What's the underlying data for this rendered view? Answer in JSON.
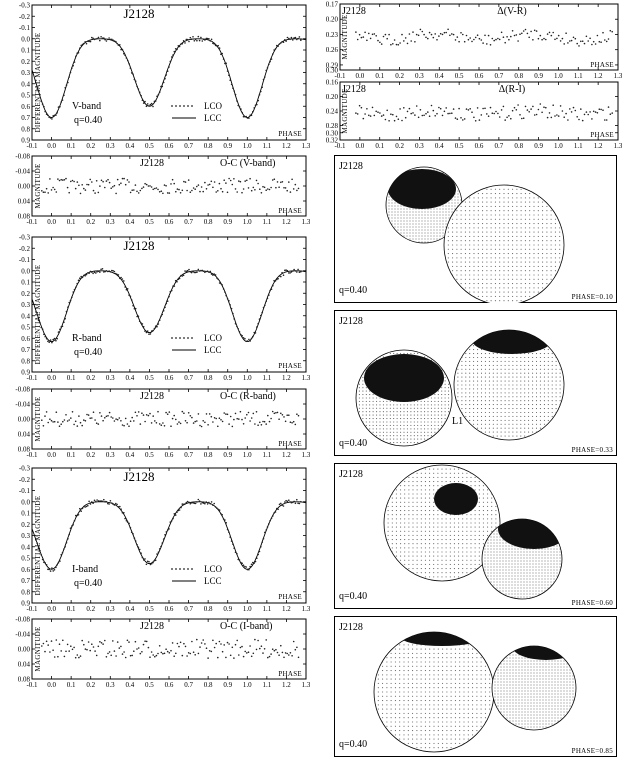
{
  "chart_data": [
    {
      "id": "lc-v",
      "type": "scatter",
      "title": "J2128",
      "band_label": "V-band",
      "q_label": "q=0.40",
      "xlabel": "PHASE",
      "ylabel": "DIFFERENTIAL MAGNITUDE",
      "xlim": [
        -0.1,
        1.3
      ],
      "ylim": [
        0.9,
        -0.3
      ],
      "x_ticks": [
        "-0.1",
        "0.0",
        "0.1",
        "0.2",
        "0.3",
        "0.4",
        "0.5",
        "0.6",
        "0.7",
        "0.8",
        "0.9",
        "1.0",
        "1.1",
        "1.2",
        "1.3"
      ],
      "y_ticks": [
        "-0.3",
        "-0.2",
        "-0.1",
        "0.0",
        "0.1",
        "0.2",
        "0.3",
        "0.4",
        "0.5",
        "0.6",
        "0.7",
        "0.8",
        "0.9"
      ],
      "series": [
        {
          "name": "LCO"
        },
        {
          "name": "LCC"
        }
      ],
      "curve": {
        "max": 0.0,
        "min1": 0.6,
        "min2": 0.7
      }
    },
    {
      "id": "oc-v",
      "type": "scatter",
      "title": "J2128",
      "label": "O-C (V-band)",
      "xlabel": "PHASE",
      "ylabel": "MAGNITUDE",
      "xlim": [
        -0.1,
        1.3
      ],
      "ylim": [
        0.08,
        -0.08
      ],
      "x_ticks": [
        "-0.1",
        "0.0",
        "0.1",
        "0.2",
        "0.3",
        "0.4",
        "0.5",
        "0.6",
        "0.7",
        "0.8",
        "0.9",
        "1.0",
        "1.1",
        "1.2",
        "1.3"
      ],
      "y_ticks": [
        "-0.08",
        "-0.04",
        "0.00",
        "0.04",
        "0.08"
      ],
      "scatter": 0.02
    },
    {
      "id": "lc-r",
      "type": "scatter",
      "title": "J2128",
      "band_label": "R-band",
      "q_label": "q=0.40",
      "xlabel": "PHASE",
      "ylabel": "DIFFERENTIAL MAGNITUDE",
      "xlim": [
        -0.1,
        1.3
      ],
      "ylim": [
        0.9,
        -0.3
      ],
      "x_ticks": [
        "-0.1",
        "0.0",
        "0.1",
        "0.2",
        "0.3",
        "0.4",
        "0.5",
        "0.6",
        "0.7",
        "0.8",
        "0.9",
        "1.0",
        "1.1",
        "1.2",
        "1.3"
      ],
      "y_ticks": [
        "-0.3",
        "-0.2",
        "-0.1",
        "0.0",
        "0.1",
        "0.2",
        "0.3",
        "0.4",
        "0.5",
        "0.6",
        "0.7",
        "0.8",
        "0.9"
      ],
      "series": [
        {
          "name": "LCO"
        },
        {
          "name": "LCC"
        }
      ],
      "curve": {
        "max": 0.0,
        "min1": 0.55,
        "min2": 0.63
      }
    },
    {
      "id": "oc-r",
      "type": "scatter",
      "title": "J2128",
      "label": "O-C (R-band)",
      "xlabel": "PHASE",
      "ylabel": "MAGNITUDE",
      "xlim": [
        -0.1,
        1.3
      ],
      "ylim": [
        0.08,
        -0.08
      ],
      "x_ticks": [
        "-0.1",
        "0.0",
        "0.1",
        "0.2",
        "0.3",
        "0.4",
        "0.5",
        "0.6",
        "0.7",
        "0.8",
        "0.9",
        "1.0",
        "1.1",
        "1.2",
        "1.3"
      ],
      "y_ticks": [
        "-0.08",
        "-0.04",
        "0.00",
        "0.04",
        "0.08"
      ],
      "scatter": 0.02
    },
    {
      "id": "lc-i",
      "type": "scatter",
      "title": "J2128",
      "band_label": "I-band",
      "q_label": "q=0.40",
      "xlabel": "PHASE",
      "ylabel": "DIFFERENTIAL MAGNITUDE",
      "xlim": [
        -0.1,
        1.3
      ],
      "ylim": [
        0.9,
        -0.3
      ],
      "x_ticks": [
        "-0.1",
        "0.0",
        "0.1",
        "0.2",
        "0.3",
        "0.4",
        "0.5",
        "0.6",
        "0.7",
        "0.8",
        "0.9",
        "1.0",
        "1.1",
        "1.2",
        "1.3"
      ],
      "y_ticks": [
        "-0.3",
        "-0.2",
        "-0.1",
        "0.0",
        "0.1",
        "0.2",
        "0.3",
        "0.4",
        "0.5",
        "0.6",
        "0.7",
        "0.8",
        "0.9"
      ],
      "series": [
        {
          "name": "LCO"
        },
        {
          "name": "LCC"
        }
      ],
      "curve": {
        "max": 0.0,
        "min1": 0.55,
        "min2": 0.6
      }
    },
    {
      "id": "oc-i",
      "type": "scatter",
      "title": "J2128",
      "label": "O-C (I-band)",
      "xlabel": "PHASE",
      "ylabel": "MAGNITUDE",
      "xlim": [
        -0.1,
        1.3
      ],
      "ylim": [
        0.08,
        -0.08
      ],
      "x_ticks": [
        "-0.1",
        "0.0",
        "0.1",
        "0.2",
        "0.3",
        "0.4",
        "0.5",
        "0.6",
        "0.7",
        "0.8",
        "0.9",
        "1.0",
        "1.1",
        "1.2",
        "1.3"
      ],
      "y_ticks": [
        "-0.08",
        "-0.04",
        "0.00",
        "0.04",
        "0.08"
      ],
      "scatter": 0.025
    },
    {
      "id": "color-vr",
      "type": "scatter",
      "title": "J2128",
      "label": "Δ(V-R)",
      "xlabel": "PHASE",
      "ylabel": "MAGNITUDE",
      "xlim": [
        -0.1,
        1.3
      ],
      "ylim": [
        0.3,
        0.17
      ],
      "x_ticks": [
        "-0.1",
        "0.0",
        "0.1",
        "0.2",
        "0.3",
        "0.4",
        "0.5",
        "0.6",
        "0.7",
        "0.8",
        "0.9",
        "1.0",
        "1.1",
        "1.2",
        "1.3"
      ],
      "y_ticks": [
        "0.17",
        "0.20",
        "0.23",
        "0.26",
        "0.29",
        "0.30"
      ],
      "mean": 0.235,
      "scatter": 0.012
    },
    {
      "id": "color-ri",
      "type": "scatter",
      "title": "J2128",
      "label": "Δ(R-I)",
      "xlabel": "PHASE",
      "ylabel": "MAGNITUDE",
      "xlim": [
        -0.1,
        1.3
      ],
      "ylim": [
        0.32,
        0.16
      ],
      "x_ticks": [
        "-0.1",
        "0.0",
        "0.1",
        "0.2",
        "0.3",
        "0.4",
        "0.5",
        "0.6",
        "0.7",
        "0.8",
        "0.9",
        "1.0",
        "1.1",
        "1.2",
        "1.3"
      ],
      "y_ticks": [
        "0.16",
        "0.20",
        "0.24",
        "0.28",
        "0.30",
        "0.32"
      ],
      "mean": 0.245,
      "scatter": 0.02
    }
  ],
  "models": [
    {
      "id": "m1",
      "title": "J2128",
      "q_label": "q=0.40",
      "phase_label": "PHASE=0.10"
    },
    {
      "id": "m2",
      "title": "J2128",
      "q_label": "q=0.40",
      "phase_label": "PHASE=0.33",
      "l1_label": "L1"
    },
    {
      "id": "m3",
      "title": "J2128",
      "q_label": "q=0.40",
      "phase_label": "PHASE=0.60"
    },
    {
      "id": "m4",
      "title": "J2128",
      "q_label": "q=0.40",
      "phase_label": "PHASE=0.85"
    }
  ]
}
